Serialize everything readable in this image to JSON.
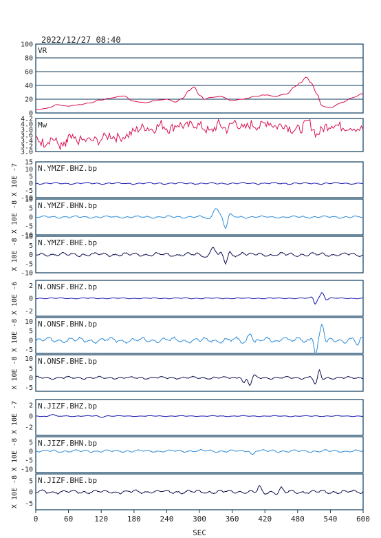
{
  "timestamp": "2022/12/27 08:40",
  "colors": {
    "frame": "#0b3a5a",
    "gridline": "#0b3a5a",
    "vr_line": "#d8104e",
    "mw_line": "#d8104e",
    "bhz_line": "#1414b0",
    "bhn_line": "#2a8ad8",
    "bhe_line": "#0c0c50"
  },
  "chart_data": {
    "type": "line",
    "xlabel": "SEC",
    "xlim": [
      0,
      600
    ],
    "xticks": [
      "0",
      "60",
      "120",
      "180",
      "240",
      "300",
      "360",
      "420",
      "480",
      "540",
      "600"
    ],
    "panels": [
      {
        "id": "vr",
        "label": "VR",
        "yticks": [
          "100",
          "80",
          "60",
          "40",
          "20",
          "0"
        ],
        "ylim": [
          0,
          100
        ],
        "grid": true,
        "color": "vr_line",
        "x": [
          0,
          20,
          40,
          55,
          80,
          100,
          120,
          140,
          160,
          180,
          200,
          220,
          240,
          255,
          270,
          280,
          290,
          300,
          310,
          320,
          340,
          360,
          380,
          400,
          420,
          440,
          460,
          475,
          485,
          495,
          505,
          515,
          525,
          540,
          560,
          580,
          600
        ],
        "y": [
          5,
          7,
          12,
          10,
          12,
          15,
          19,
          22,
          25,
          17,
          15,
          18,
          20,
          16,
          22,
          32,
          38,
          26,
          20,
          22,
          24,
          18,
          20,
          24,
          26,
          24,
          28,
          38,
          44,
          52,
          44,
          28,
          10,
          8,
          15,
          22,
          28
        ]
      },
      {
        "id": "mw",
        "label": "Mw",
        "yticks": [
          "4.2",
          "4.0",
          "3.8",
          "3.6",
          "3.4",
          "3.2",
          "3.0"
        ],
        "ylim": [
          3.0,
          4.2
        ],
        "grid": false,
        "color": "mw_line",
        "x": [
          0,
          15,
          30,
          45,
          55,
          60,
          75,
          95,
          115,
          135,
          150,
          170,
          185,
          200,
          215,
          230,
          245,
          260,
          275,
          290,
          305,
          320,
          335,
          350,
          365,
          380,
          395,
          410,
          425,
          440,
          455,
          470,
          485,
          500,
          515,
          530,
          545,
          560,
          580,
          600
        ],
        "y": [
          3.5,
          3.3,
          3.5,
          3.2,
          3.2,
          3.5,
          3.4,
          3.4,
          3.4,
          3.6,
          3.5,
          3.6,
          3.8,
          3.9,
          3.8,
          4.0,
          3.8,
          4.0,
          3.9,
          4.0,
          3.9,
          3.7,
          4.0,
          3.8,
          4.1,
          3.8,
          4.0,
          3.9,
          4.1,
          3.9,
          4.0,
          3.8,
          3.8,
          4.1,
          3.6,
          3.9,
          4.0,
          3.9,
          3.9,
          3.8
        ]
      },
      {
        "id": "ymzf-bhz",
        "label": "N.YMZF.BHZ.bp",
        "scale": "X 10E -7",
        "yticks": [
          "15",
          "10",
          "5",
          "0",
          "-5",
          "-10"
        ],
        "ylim": [
          -10,
          15
        ],
        "color": "bhz_line",
        "amplitude": 0.6,
        "bursts": []
      },
      {
        "id": "ymzf-bhn",
        "label": "N.YMZF.BHN.bp",
        "scale": "X 10E -8",
        "yticks": [
          "10",
          "5",
          "0",
          "-5",
          "-10"
        ],
        "ylim": [
          -10,
          10
        ],
        "color": "bhn_line",
        "amplitude": 0.6,
        "bursts": [
          [
            330,
            5.5,
            12
          ],
          [
            348,
            -5.5,
            8
          ]
        ]
      },
      {
        "id": "ymzf-bhe",
        "label": "N.YMZF.BHE.bp",
        "scale": "X 10E -8",
        "yticks": [
          "10",
          "5",
          "0",
          "-5",
          "-10"
        ],
        "ylim": [
          -10,
          10
        ],
        "color": "bhe_line",
        "amplitude": 1.0,
        "bursts": [
          [
            325,
            4.5,
            10
          ],
          [
            348,
            -5,
            8
          ],
          [
            380,
            1.5,
            8
          ]
        ]
      },
      {
        "id": "onsf-bhz",
        "label": "N.ONSF.BHZ.bp",
        "scale": "X 10E -6",
        "yticks": [
          "2",
          "0",
          "-2"
        ],
        "ylim": [
          -2.8,
          2.8
        ],
        "color": "bhz_line",
        "amplitude": 0.08,
        "bursts": [
          [
            512,
            -0.8,
            6
          ],
          [
            525,
            0.9,
            8
          ]
        ]
      },
      {
        "id": "onsf-bhn",
        "label": "N.ONSF.BHN.bp",
        "scale": "X 10E -8",
        "yticks": [
          "10",
          "5",
          "0",
          "-5"
        ],
        "ylim": [
          -7,
          12
        ],
        "color": "bhn_line",
        "amplitude": 1.4,
        "bursts": [
          [
            393,
            4.5,
            10
          ],
          [
            455,
            2.5,
            10
          ],
          [
            513,
            -7,
            6
          ],
          [
            525,
            8,
            8
          ],
          [
            590,
            -3,
            8
          ]
        ]
      },
      {
        "id": "onsf-bhe",
        "label": "N.ONSF.BHE.bp",
        "scale": "X 10E -8",
        "yticks": [
          "10",
          "5",
          "0",
          "-5"
        ],
        "ylim": [
          -7,
          12
        ],
        "color": "bhe_line",
        "amplitude": 0.6,
        "bursts": [
          [
            382,
            -3.5,
            8
          ],
          [
            392,
            -4.5,
            8
          ],
          [
            512,
            -3,
            8
          ],
          [
            520,
            3,
            6
          ]
        ]
      },
      {
        "id": "jizf-bhz",
        "label": "N.JIZF.BHZ.bp",
        "scale": "X 10E -7",
        "yticks": [
          "2",
          "0",
          "-2"
        ],
        "ylim": [
          -3.5,
          3
        ],
        "color": "bhz_line",
        "amplitude": 0.08,
        "bursts": [
          [
            30,
            0.3,
            10
          ],
          [
            120,
            -0.2,
            10
          ]
        ]
      },
      {
        "id": "jizf-bhn",
        "label": "N.JIZF.BHN.bp",
        "scale": "X 10E -8",
        "yticks": [
          "5",
          "0",
          "-5",
          "-10"
        ],
        "ylim": [
          -12,
          8
        ],
        "color": "bhn_line",
        "amplitude": 0.7,
        "bursts": [
          [
            397,
            -2,
            8
          ]
        ]
      },
      {
        "id": "jizf-bhe",
        "label": "N.JIZF.BHE.bp",
        "scale": "X 10E -8",
        "yticks": [
          "5",
          "0",
          "-5"
        ],
        "ylim": [
          -8,
          8
        ],
        "color": "bhe_line",
        "amplitude": 0.8,
        "bursts": [
          [
            410,
            2,
            8
          ],
          [
            450,
            1.5,
            8
          ]
        ]
      }
    ]
  }
}
